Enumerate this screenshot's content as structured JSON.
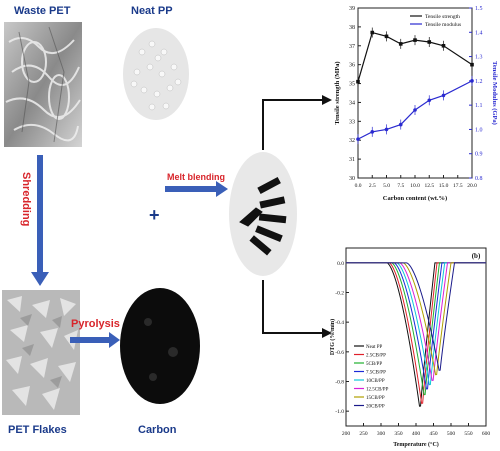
{
  "labels": {
    "waste_pet": "Waste PET",
    "neat_pp": "Neat PP",
    "shredding": "Shredding",
    "plus": "+",
    "melt_blending": "Melt blending",
    "pyrolysis": "Pyrolysis",
    "pet_flakes": "PET Flakes",
    "carbon": "Carbon"
  },
  "colors": {
    "blue_label": "#1a3a8a",
    "red_label": "#d8252b",
    "arrow_blue": "#3a5fb8"
  },
  "chart_data": [
    {
      "type": "line",
      "x": [
        0.0,
        2.5,
        5.0,
        7.5,
        10.0,
        12.5,
        15.0,
        20.0
      ],
      "xlabel": "Carbon content (wt.%)",
      "ylabel": "Tensile strength (MPa)",
      "y2label": "Tensile Modulus (GPa)",
      "ylim": [
        30,
        39
      ],
      "y2lim": [
        0.8,
        1.5
      ],
      "xticks": [
        "0.0",
        "2.5",
        "5.0",
        "7.5",
        "10.0",
        "12.5",
        "15.0",
        "17.5",
        "20.0"
      ],
      "yticks": [
        "30",
        "31",
        "32",
        "33",
        "34",
        "35",
        "36",
        "37",
        "38",
        "39"
      ],
      "y2ticks": [
        "0.8",
        "0.9",
        "1.0",
        "1.1",
        "1.2",
        "1.3",
        "1.4",
        "1.5"
      ],
      "legend_position": "top-right",
      "series": [
        {
          "name": "Tensile strength",
          "axis": "left",
          "color": "#111111",
          "values": [
            35.1,
            37.7,
            37.5,
            37.1,
            37.3,
            37.2,
            37.0,
            36.0
          ]
        },
        {
          "name": "Tensile modulus",
          "axis": "right",
          "color": "#2a2ad0",
          "values": [
            0.96,
            0.99,
            1.0,
            1.02,
            1.08,
            1.12,
            1.14,
            1.2
          ]
        }
      ]
    },
    {
      "type": "line",
      "panel_label": "(b)",
      "xlabel": "Temperature (°C)",
      "ylabel": "DTG (%/min)",
      "xlim": [
        200,
        600
      ],
      "ylim": [
        -1.1,
        0.1
      ],
      "xticks": [
        "200",
        "250",
        "300",
        "350",
        "400",
        "450",
        "500",
        "550",
        "600"
      ],
      "yticks": [
        "0.0",
        "-0.2",
        "-0.4",
        "-0.6",
        "-0.8",
        "-1.0"
      ],
      "legend_position": "bottom-left",
      "series": [
        {
          "name": "Neat PP",
          "color": "#111111",
          "peak_temp": 412,
          "peak_value": -1.0
        },
        {
          "name": "2.5CB/PP",
          "color": "#e0202a",
          "peak_temp": 418,
          "peak_value": -0.98
        },
        {
          "name": "5CB/PP",
          "color": "#20b030",
          "peak_temp": 425,
          "peak_value": -0.92
        },
        {
          "name": "7.5CB/PP",
          "color": "#1a2ad8",
          "peak_temp": 432,
          "peak_value": -0.88
        },
        {
          "name": "10CB/PP",
          "color": "#10c8d8",
          "peak_temp": 440,
          "peak_value": -0.85
        },
        {
          "name": "12.5CB/PP",
          "color": "#d820d8",
          "peak_temp": 448,
          "peak_value": -0.82
        },
        {
          "name": "15CB/PP",
          "color": "#b0a000",
          "peak_temp": 458,
          "peak_value": -0.78
        },
        {
          "name": "20CB/PP",
          "color": "#1a1a8a",
          "peak_temp": 468,
          "peak_value": -0.75
        }
      ]
    }
  ]
}
